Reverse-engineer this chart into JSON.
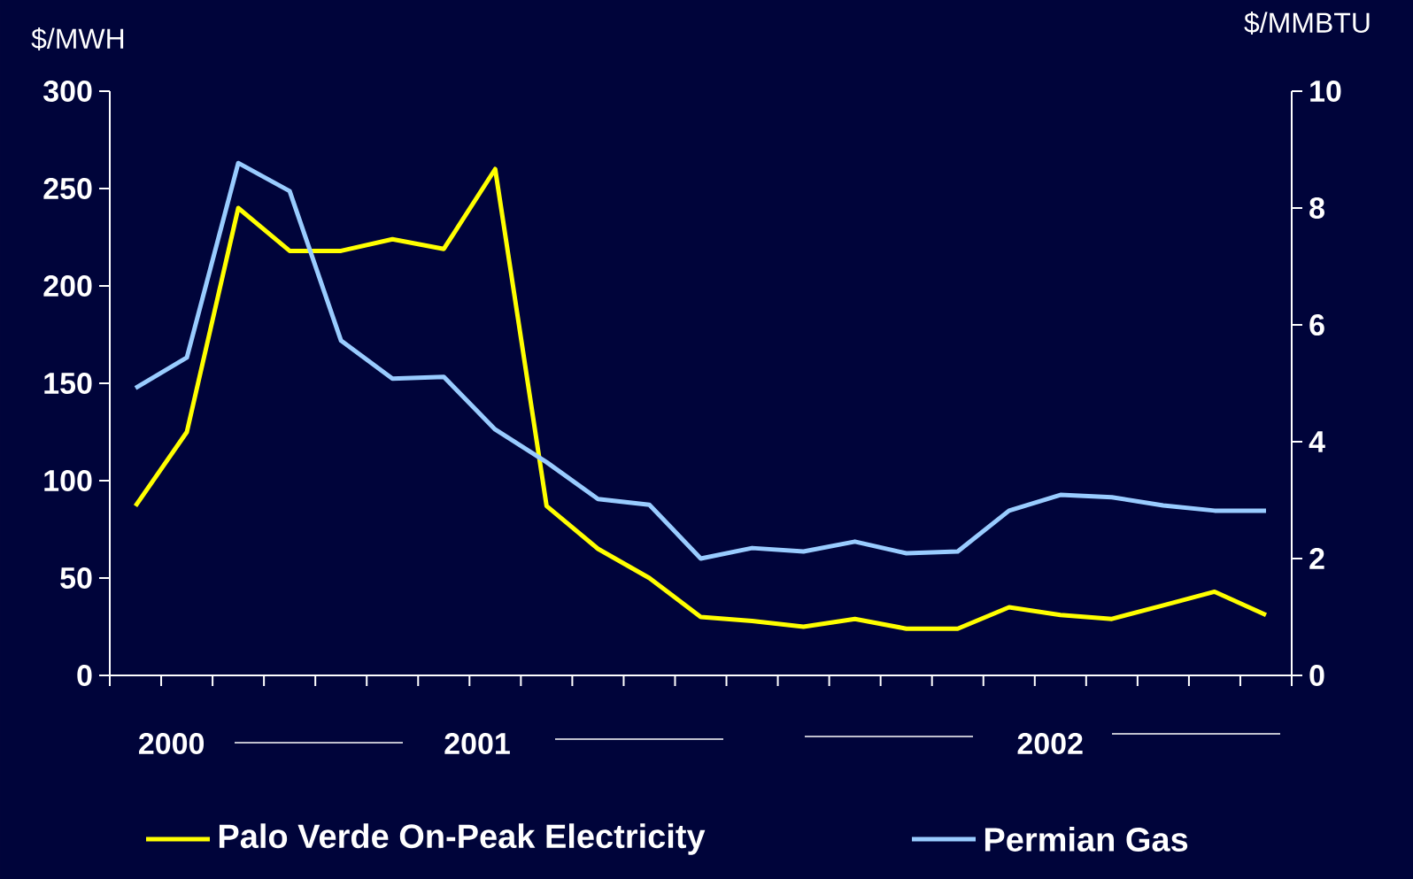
{
  "chart_data": {
    "type": "line",
    "ylabel": "$/MWH",
    "y2label": "$/MMBTU",
    "categories": [
      null,
      null,
      null,
      null,
      null,
      null,
      null,
      null,
      null,
      null,
      null,
      null,
      null,
      null,
      null,
      null,
      null,
      null,
      null,
      null,
      null,
      null,
      null
    ],
    "series": [
      {
        "name": "Palo Verde On-Peak Electricity",
        "color": "#ffff00",
        "values": [
          87,
          125,
          240,
          218,
          218,
          224,
          219,
          260,
          87,
          65,
          50,
          30,
          28,
          25,
          29,
          24,
          24,
          35,
          31,
          29,
          36,
          43,
          31
        ]
      },
      {
        "name": "Permian Gas",
        "color": "#99ccff",
        "axis": "y2",
        "values": [
          4.92,
          5.44,
          8.77,
          8.29,
          5.73,
          5.08,
          5.11,
          4.21,
          3.65,
          3.02,
          2.92,
          2.0,
          2.18,
          2.12,
          2.29,
          2.09,
          2.12,
          2.82,
          3.09,
          3.05,
          2.91,
          2.82,
          2.82
        ]
      }
    ],
    "ylim": [
      0,
      300
    ],
    "yticks": [
      0,
      50,
      100,
      150,
      200,
      250,
      300
    ],
    "y2lim": [
      0,
      10
    ],
    "y2ticks": [
      0,
      2,
      4,
      6,
      8,
      10
    ],
    "annotations": [
      "2000",
      "2001",
      "2002"
    ],
    "legend": "bottom",
    "line_style": "solid",
    "marker": "none"
  }
}
